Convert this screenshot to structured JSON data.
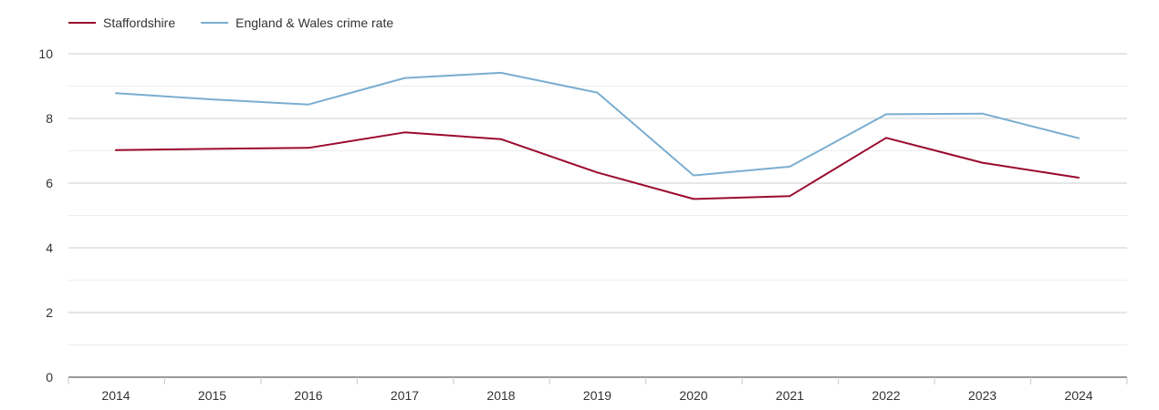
{
  "chart_data": {
    "type": "line",
    "title": "",
    "xlabel": "",
    "ylabel": "",
    "categories": [
      "2014",
      "2015",
      "2016",
      "2017",
      "2018",
      "2019",
      "2020",
      "2021",
      "2022",
      "2023",
      "2024"
    ],
    "ylim": [
      0,
      10
    ],
    "yticks": [
      0,
      2,
      4,
      6,
      8,
      10
    ],
    "grid": true,
    "legend_position": "top-left",
    "series": [
      {
        "name": "Staffordshire",
        "color": "#9b0a2e",
        "values": [
          7.02,
          7.06,
          7.09,
          7.57,
          7.36,
          6.33,
          5.51,
          5.6,
          7.4,
          6.63,
          6.17
        ]
      },
      {
        "name": "England & Wales crime rate",
        "color": "#7aaed1",
        "values": [
          8.78,
          8.59,
          8.43,
          9.25,
          9.41,
          8.8,
          6.24,
          6.51,
          8.13,
          8.15,
          7.39
        ]
      }
    ]
  }
}
